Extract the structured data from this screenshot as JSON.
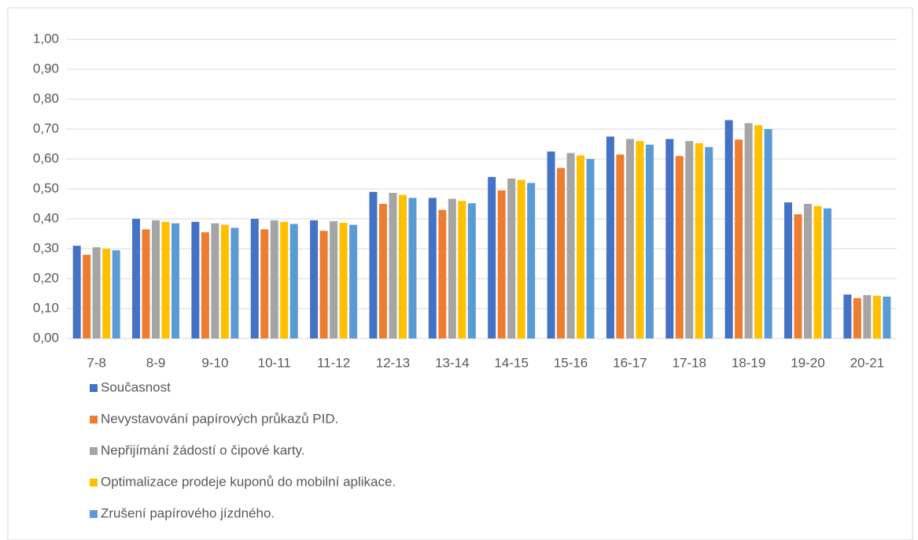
{
  "chart_data": {
    "type": "bar",
    "categories": [
      "7-8",
      "8-9",
      "9-10",
      "10-11",
      "11-12",
      "12-13",
      "13-14",
      "14-15",
      "15-16",
      "16-17",
      "17-18",
      "18-19",
      "19-20",
      "20-21"
    ],
    "series": [
      {
        "name": "Současnost",
        "color": "#4472c4",
        "values": [
          0.31,
          0.4,
          0.39,
          0.4,
          0.395,
          0.49,
          0.47,
          0.54,
          0.625,
          0.675,
          0.667,
          0.73,
          0.455,
          0.147
        ]
      },
      {
        "name": "Nevystavování papírových průkazů PID.",
        "color": "#ed7d31",
        "values": [
          0.28,
          0.365,
          0.355,
          0.365,
          0.36,
          0.45,
          0.43,
          0.495,
          0.57,
          0.615,
          0.61,
          0.665,
          0.415,
          0.135
        ]
      },
      {
        "name": "Nepřijímání žádostí o čipové karty.",
        "color": "#a5a5a5",
        "values": [
          0.305,
          0.395,
          0.385,
          0.395,
          0.392,
          0.487,
          0.467,
          0.535,
          0.62,
          0.667,
          0.66,
          0.72,
          0.45,
          0.145
        ]
      },
      {
        "name": "Optimalizace prodeje kuponů do mobilní aplikace.",
        "color": "#ffc000",
        "values": [
          0.3,
          0.39,
          0.38,
          0.39,
          0.387,
          0.48,
          0.46,
          0.53,
          0.612,
          0.66,
          0.653,
          0.713,
          0.443,
          0.143
        ]
      },
      {
        "name": "Zrušení papírového jízdného.",
        "color": "#5b9bd5",
        "values": [
          0.295,
          0.385,
          0.37,
          0.383,
          0.38,
          0.47,
          0.452,
          0.52,
          0.6,
          0.648,
          0.64,
          0.7,
          0.435,
          0.14
        ]
      }
    ],
    "ylim": [
      0,
      1
    ],
    "yticks": [
      {
        "value": 0,
        "label": "0,00"
      },
      {
        "value": 0.1,
        "label": "0,10"
      },
      {
        "value": 0.2,
        "label": "0,20"
      },
      {
        "value": 0.3,
        "label": "0,30"
      },
      {
        "value": 0.4,
        "label": "0,40"
      },
      {
        "value": 0.5,
        "label": "0,50"
      },
      {
        "value": 0.6,
        "label": "0,60"
      },
      {
        "value": 0.7,
        "label": "0,70"
      },
      {
        "value": 0.8,
        "label": "0,80"
      },
      {
        "value": 0.9,
        "label": "0,90"
      },
      {
        "value": 1,
        "label": "1,00"
      }
    ],
    "grid": true,
    "legend": "bottom"
  }
}
